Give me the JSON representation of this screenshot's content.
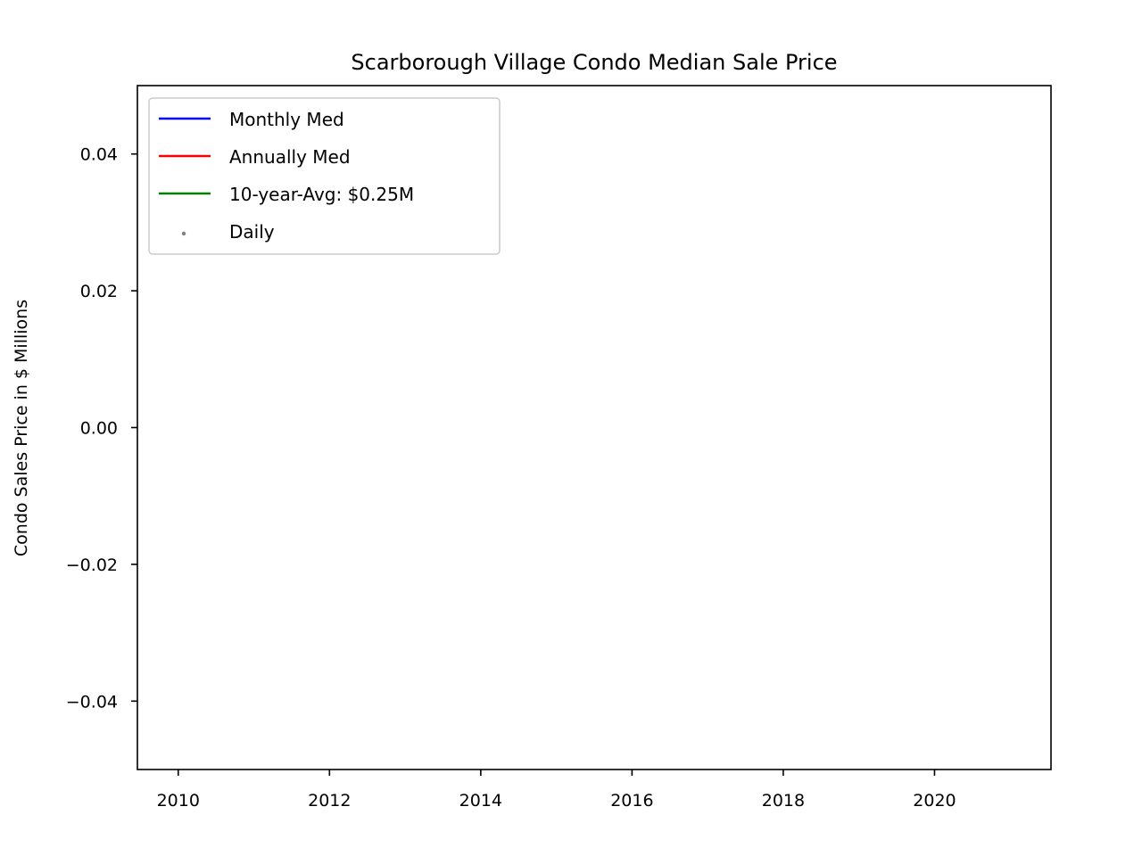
{
  "chart_data": {
    "type": "line",
    "title": "Scarborough Village Condo Median Sale Price",
    "xlabel": "",
    "ylabel": "Condo Sales Price in $ Millions",
    "xlim": [
      2009.46,
      2021.54
    ],
    "ylim": [
      -0.05,
      0.05
    ],
    "x_ticks": [
      2010,
      2012,
      2014,
      2016,
      2018,
      2020
    ],
    "x_tick_labels": [
      "2010",
      "2012",
      "2014",
      "2016",
      "2018",
      "2020"
    ],
    "y_ticks": [
      0.04,
      0.02,
      0.0,
      -0.02,
      -0.04
    ],
    "y_tick_labels": [
      "0.04",
      "0.02",
      "0.00",
      "−0.02",
      "−0.04"
    ],
    "grid": false,
    "legend_position": "upper-left",
    "series": [
      {
        "name": "Monthly Med",
        "style": "line",
        "color": "#0000ff",
        "x": [],
        "values": []
      },
      {
        "name": "Annually Med",
        "style": "line",
        "color": "#ff0000",
        "x": [],
        "values": []
      },
      {
        "name": "10-year-Avg: $0.25M",
        "style": "line",
        "color": "#008000",
        "x": [],
        "values": []
      },
      {
        "name": "Daily",
        "style": "scatter",
        "color": "#808080",
        "x": [],
        "values": []
      }
    ]
  }
}
